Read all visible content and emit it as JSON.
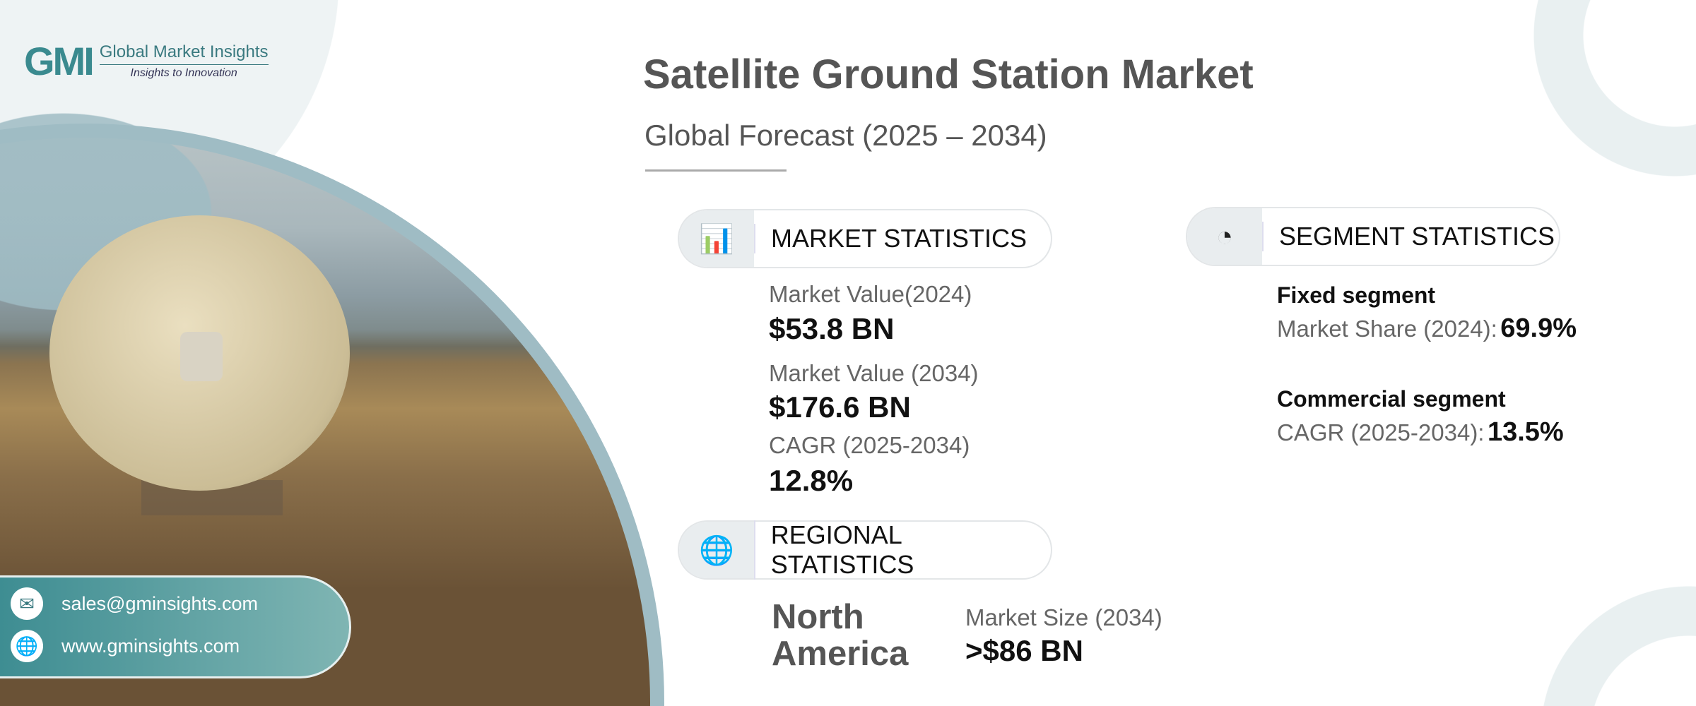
{
  "logo": {
    "mark": "GMI",
    "name": "Global Market Insights",
    "tagline": "Insights to Innovation"
  },
  "header": {
    "title": "Satellite Ground Station Market",
    "subtitle": "Global Forecast (2025 – 2034)"
  },
  "market_statistics": {
    "heading": "MARKET STATISTICS",
    "items": [
      {
        "label": "Market Value(2024)",
        "value": "$53.8 BN"
      },
      {
        "label": "Market Value (2034)",
        "value": "$176.6 BN"
      },
      {
        "label": "CAGR (2025-2034)",
        "value": "12.8%"
      }
    ]
  },
  "segment_statistics": {
    "heading": "SEGMENT STATISTICS",
    "items": [
      {
        "segment": "Fixed segment",
        "label": "Market Share (2024):",
        "value": "69.9%"
      },
      {
        "segment": "Commercial segment",
        "label": "CAGR (2025-2034):",
        "value": "13.5%"
      }
    ]
  },
  "regional_statistics": {
    "heading": "REGIONAL STATISTICS",
    "region_line1": "North",
    "region_line2": "America",
    "label": "Market Size (2034)",
    "value": ">$86 BN"
  },
  "contact": {
    "email": "sales@gminsights.com",
    "website": "www.gminsights.com"
  }
}
